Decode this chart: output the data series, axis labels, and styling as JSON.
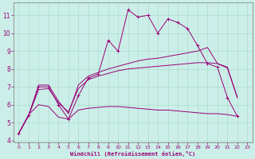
{
  "xlabel": "Windchill (Refroidissement éolien,°C)",
  "background_color": "#cceee8",
  "grid_color": "#aaddcc",
  "line_color": "#990077",
  "xlim": [
    -0.5,
    23.5
  ],
  "ylim": [
    3.9,
    11.7
  ],
  "xticks": [
    0,
    1,
    2,
    3,
    4,
    5,
    6,
    7,
    8,
    9,
    10,
    11,
    12,
    13,
    14,
    15,
    16,
    17,
    18,
    19,
    20,
    21,
    22,
    23
  ],
  "yticks": [
    4,
    5,
    6,
    7,
    8,
    9,
    10,
    11
  ],
  "series": {
    "jagged": {
      "x": [
        0,
        1,
        2,
        3,
        4,
        5,
        6,
        7,
        8,
        9,
        10,
        11,
        12,
        13,
        14,
        15,
        16,
        17,
        18,
        19,
        20,
        21,
        22
      ],
      "y": [
        4.4,
        5.4,
        7.0,
        7.0,
        6.0,
        5.2,
        6.5,
        7.5,
        7.7,
        9.6,
        9.0,
        11.3,
        10.9,
        11.0,
        10.0,
        10.8,
        10.6,
        10.25,
        9.3,
        8.3,
        8.1,
        6.4,
        5.35
      ],
      "marker": true
    },
    "upper_smooth": {
      "x": [
        0,
        1,
        2,
        3,
        4,
        5,
        6,
        7,
        8,
        9,
        10,
        11,
        12,
        13,
        14,
        15,
        16,
        17,
        18,
        19,
        20,
        21,
        22
      ],
      "y": [
        4.4,
        5.4,
        7.1,
        7.1,
        6.2,
        5.5,
        7.1,
        7.6,
        7.8,
        8.0,
        8.15,
        8.3,
        8.45,
        8.55,
        8.6,
        8.7,
        8.8,
        8.9,
        9.0,
        9.2,
        8.3,
        8.1,
        6.4
      ],
      "marker": false
    },
    "middle_smooth": {
      "x": [
        0,
        1,
        2,
        3,
        4,
        5,
        6,
        7,
        8,
        9,
        10,
        11,
        12,
        13,
        14,
        15,
        16,
        17,
        18,
        19,
        20,
        21,
        22
      ],
      "y": [
        4.4,
        5.4,
        6.85,
        6.9,
        6.1,
        5.6,
        6.9,
        7.4,
        7.6,
        7.75,
        7.9,
        8.0,
        8.05,
        8.1,
        8.15,
        8.2,
        8.25,
        8.3,
        8.35,
        8.35,
        8.3,
        8.05,
        6.4
      ],
      "marker": false
    },
    "bottom_flat": {
      "x": [
        0,
        1,
        2,
        3,
        4,
        5,
        6,
        7,
        8,
        9,
        10,
        11,
        12,
        13,
        14,
        15,
        16,
        17,
        18,
        19,
        20,
        21,
        22
      ],
      "y": [
        4.4,
        5.45,
        6.0,
        5.9,
        5.3,
        5.2,
        5.7,
        5.8,
        5.85,
        5.9,
        5.9,
        5.85,
        5.8,
        5.75,
        5.7,
        5.7,
        5.65,
        5.6,
        5.55,
        5.5,
        5.5,
        5.45,
        5.35
      ],
      "marker": false
    }
  }
}
